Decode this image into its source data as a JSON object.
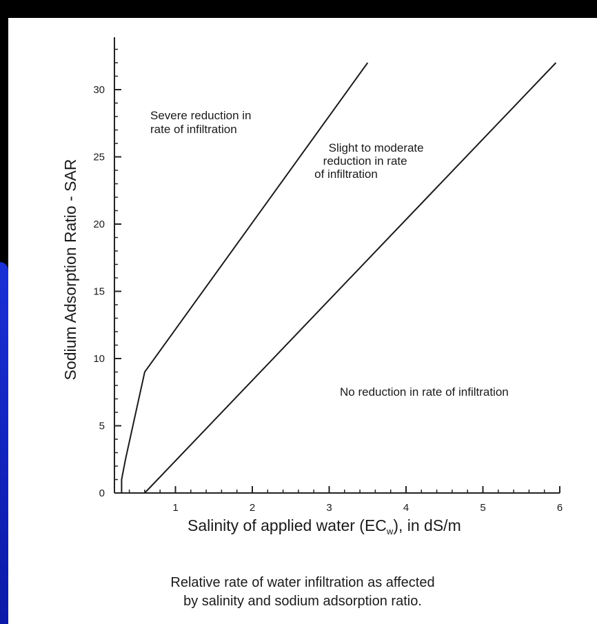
{
  "chart_data": {
    "type": "line",
    "xlabel": "Salinity of applied water (EC",
    "xlabel_sub": "w",
    "xlabel_tail": "), in dS/m",
    "ylabel": "Sodium Adsorption Ratio - SAR",
    "xlim": [
      0,
      6
    ],
    "ylim": [
      0,
      32
    ],
    "x_ticks": [
      1,
      2,
      3,
      4,
      5,
      6
    ],
    "y_ticks": [
      0,
      5,
      10,
      15,
      20,
      25,
      30
    ],
    "grid": false,
    "series": [
      {
        "x": [
          0.3,
          0.3,
          0.35,
          0.6,
          3.5
        ],
        "y": [
          0,
          1,
          2.5,
          9,
          32
        ]
      },
      {
        "x": [
          0.6,
          5.95
        ],
        "y": [
          0,
          32
        ]
      }
    ],
    "annotations": [
      {
        "lines": [
          "Severe reduction in",
          "rate of infiltration"
        ]
      },
      {
        "lines": [
          "Slight to moderate",
          "reduction in rate",
          "of infiltration"
        ]
      },
      {
        "lines": [
          "No reduction in rate of infiltration"
        ]
      }
    ]
  },
  "caption": {
    "line1": "Relative rate of water infiltration as affected",
    "line2": "by salinity and sodium adsorption ratio."
  }
}
